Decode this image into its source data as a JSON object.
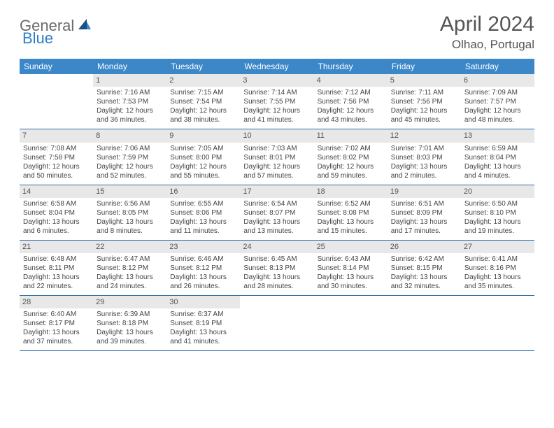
{
  "brand": {
    "part1": "General",
    "part2": "Blue"
  },
  "title": "April 2024",
  "location": "Olhao, Portugal",
  "colors": {
    "header_bg": "#3b87c8",
    "header_text": "#ffffff",
    "day_num_bg": "#e8e8e8",
    "border": "#2f6fa8",
    "brand_gray": "#6b6b6b",
    "brand_blue": "#2f7dc4"
  },
  "dow": [
    "Sunday",
    "Monday",
    "Tuesday",
    "Wednesday",
    "Thursday",
    "Friday",
    "Saturday"
  ],
  "weeks": [
    [
      {
        "n": "",
        "sr": "",
        "ss": "",
        "dl1": "",
        "dl2": ""
      },
      {
        "n": "1",
        "sr": "Sunrise: 7:16 AM",
        "ss": "Sunset: 7:53 PM",
        "dl1": "Daylight: 12 hours",
        "dl2": "and 36 minutes."
      },
      {
        "n": "2",
        "sr": "Sunrise: 7:15 AM",
        "ss": "Sunset: 7:54 PM",
        "dl1": "Daylight: 12 hours",
        "dl2": "and 38 minutes."
      },
      {
        "n": "3",
        "sr": "Sunrise: 7:14 AM",
        "ss": "Sunset: 7:55 PM",
        "dl1": "Daylight: 12 hours",
        "dl2": "and 41 minutes."
      },
      {
        "n": "4",
        "sr": "Sunrise: 7:12 AM",
        "ss": "Sunset: 7:56 PM",
        "dl1": "Daylight: 12 hours",
        "dl2": "and 43 minutes."
      },
      {
        "n": "5",
        "sr": "Sunrise: 7:11 AM",
        "ss": "Sunset: 7:56 PM",
        "dl1": "Daylight: 12 hours",
        "dl2": "and 45 minutes."
      },
      {
        "n": "6",
        "sr": "Sunrise: 7:09 AM",
        "ss": "Sunset: 7:57 PM",
        "dl1": "Daylight: 12 hours",
        "dl2": "and 48 minutes."
      }
    ],
    [
      {
        "n": "7",
        "sr": "Sunrise: 7:08 AM",
        "ss": "Sunset: 7:58 PM",
        "dl1": "Daylight: 12 hours",
        "dl2": "and 50 minutes."
      },
      {
        "n": "8",
        "sr": "Sunrise: 7:06 AM",
        "ss": "Sunset: 7:59 PM",
        "dl1": "Daylight: 12 hours",
        "dl2": "and 52 minutes."
      },
      {
        "n": "9",
        "sr": "Sunrise: 7:05 AM",
        "ss": "Sunset: 8:00 PM",
        "dl1": "Daylight: 12 hours",
        "dl2": "and 55 minutes."
      },
      {
        "n": "10",
        "sr": "Sunrise: 7:03 AM",
        "ss": "Sunset: 8:01 PM",
        "dl1": "Daylight: 12 hours",
        "dl2": "and 57 minutes."
      },
      {
        "n": "11",
        "sr": "Sunrise: 7:02 AM",
        "ss": "Sunset: 8:02 PM",
        "dl1": "Daylight: 12 hours",
        "dl2": "and 59 minutes."
      },
      {
        "n": "12",
        "sr": "Sunrise: 7:01 AM",
        "ss": "Sunset: 8:03 PM",
        "dl1": "Daylight: 13 hours",
        "dl2": "and 2 minutes."
      },
      {
        "n": "13",
        "sr": "Sunrise: 6:59 AM",
        "ss": "Sunset: 8:04 PM",
        "dl1": "Daylight: 13 hours",
        "dl2": "and 4 minutes."
      }
    ],
    [
      {
        "n": "14",
        "sr": "Sunrise: 6:58 AM",
        "ss": "Sunset: 8:04 PM",
        "dl1": "Daylight: 13 hours",
        "dl2": "and 6 minutes."
      },
      {
        "n": "15",
        "sr": "Sunrise: 6:56 AM",
        "ss": "Sunset: 8:05 PM",
        "dl1": "Daylight: 13 hours",
        "dl2": "and 8 minutes."
      },
      {
        "n": "16",
        "sr": "Sunrise: 6:55 AM",
        "ss": "Sunset: 8:06 PM",
        "dl1": "Daylight: 13 hours",
        "dl2": "and 11 minutes."
      },
      {
        "n": "17",
        "sr": "Sunrise: 6:54 AM",
        "ss": "Sunset: 8:07 PM",
        "dl1": "Daylight: 13 hours",
        "dl2": "and 13 minutes."
      },
      {
        "n": "18",
        "sr": "Sunrise: 6:52 AM",
        "ss": "Sunset: 8:08 PM",
        "dl1": "Daylight: 13 hours",
        "dl2": "and 15 minutes."
      },
      {
        "n": "19",
        "sr": "Sunrise: 6:51 AM",
        "ss": "Sunset: 8:09 PM",
        "dl1": "Daylight: 13 hours",
        "dl2": "and 17 minutes."
      },
      {
        "n": "20",
        "sr": "Sunrise: 6:50 AM",
        "ss": "Sunset: 8:10 PM",
        "dl1": "Daylight: 13 hours",
        "dl2": "and 19 minutes."
      }
    ],
    [
      {
        "n": "21",
        "sr": "Sunrise: 6:48 AM",
        "ss": "Sunset: 8:11 PM",
        "dl1": "Daylight: 13 hours",
        "dl2": "and 22 minutes."
      },
      {
        "n": "22",
        "sr": "Sunrise: 6:47 AM",
        "ss": "Sunset: 8:12 PM",
        "dl1": "Daylight: 13 hours",
        "dl2": "and 24 minutes."
      },
      {
        "n": "23",
        "sr": "Sunrise: 6:46 AM",
        "ss": "Sunset: 8:12 PM",
        "dl1": "Daylight: 13 hours",
        "dl2": "and 26 minutes."
      },
      {
        "n": "24",
        "sr": "Sunrise: 6:45 AM",
        "ss": "Sunset: 8:13 PM",
        "dl1": "Daylight: 13 hours",
        "dl2": "and 28 minutes."
      },
      {
        "n": "25",
        "sr": "Sunrise: 6:43 AM",
        "ss": "Sunset: 8:14 PM",
        "dl1": "Daylight: 13 hours",
        "dl2": "and 30 minutes."
      },
      {
        "n": "26",
        "sr": "Sunrise: 6:42 AM",
        "ss": "Sunset: 8:15 PM",
        "dl1": "Daylight: 13 hours",
        "dl2": "and 32 minutes."
      },
      {
        "n": "27",
        "sr": "Sunrise: 6:41 AM",
        "ss": "Sunset: 8:16 PM",
        "dl1": "Daylight: 13 hours",
        "dl2": "and 35 minutes."
      }
    ],
    [
      {
        "n": "28",
        "sr": "Sunrise: 6:40 AM",
        "ss": "Sunset: 8:17 PM",
        "dl1": "Daylight: 13 hours",
        "dl2": "and 37 minutes."
      },
      {
        "n": "29",
        "sr": "Sunrise: 6:39 AM",
        "ss": "Sunset: 8:18 PM",
        "dl1": "Daylight: 13 hours",
        "dl2": "and 39 minutes."
      },
      {
        "n": "30",
        "sr": "Sunrise: 6:37 AM",
        "ss": "Sunset: 8:19 PM",
        "dl1": "Daylight: 13 hours",
        "dl2": "and 41 minutes."
      },
      {
        "n": "",
        "sr": "",
        "ss": "",
        "dl1": "",
        "dl2": ""
      },
      {
        "n": "",
        "sr": "",
        "ss": "",
        "dl1": "",
        "dl2": ""
      },
      {
        "n": "",
        "sr": "",
        "ss": "",
        "dl1": "",
        "dl2": ""
      },
      {
        "n": "",
        "sr": "",
        "ss": "",
        "dl1": "",
        "dl2": ""
      }
    ]
  ]
}
